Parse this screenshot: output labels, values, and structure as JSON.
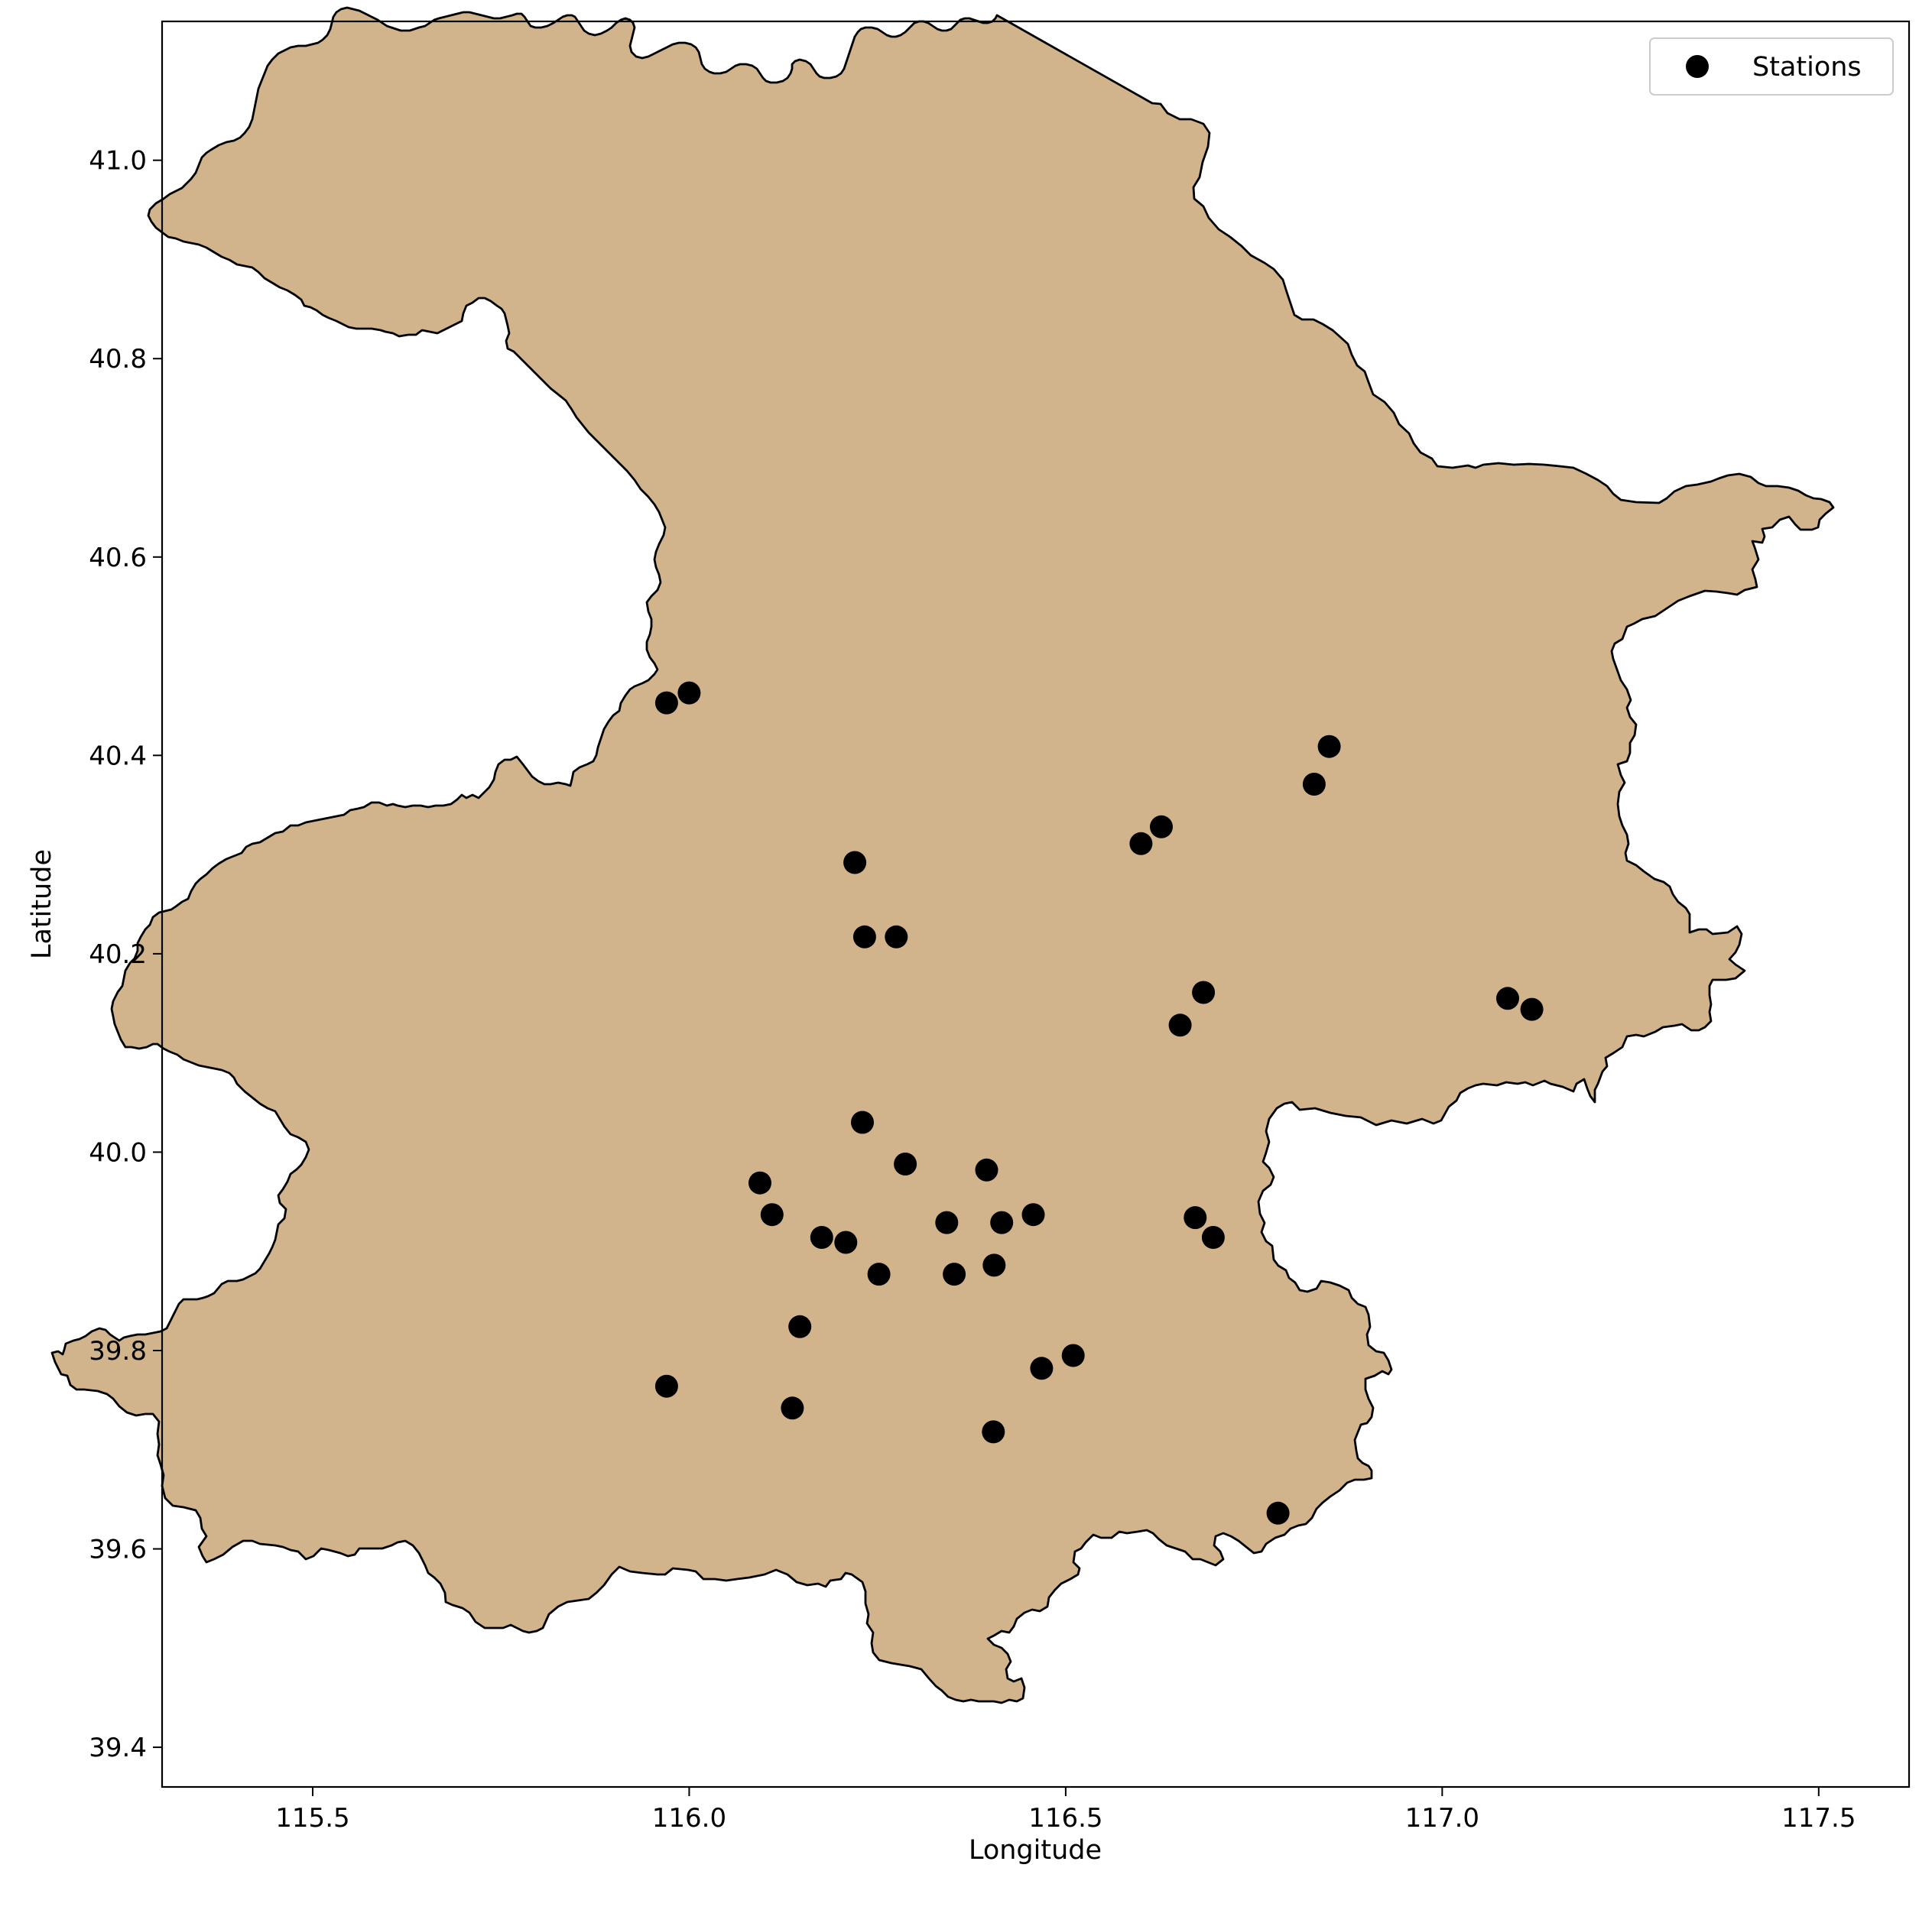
{
  "chart_data": {
    "type": "scatter",
    "title": "",
    "xlabel": "Longitude",
    "ylabel": "Latitude",
    "xlim": [
      115.3,
      117.62
    ],
    "ylim": [
      39.36,
      41.14
    ],
    "x_ticks": [
      115.5,
      116.0,
      116.5,
      117.0,
      117.5
    ],
    "x_tick_labels": [
      "115.5",
      "116.0",
      "116.5",
      "117.0",
      "117.5"
    ],
    "y_ticks": [
      39.4,
      39.6,
      39.8,
      40.0,
      40.2,
      40.4,
      40.6,
      40.8,
      41.0
    ],
    "y_tick_labels": [
      "39.4",
      "39.6",
      "39.8",
      "40.0",
      "40.2",
      "40.4",
      "40.6",
      "40.8",
      "41.0"
    ],
    "grid": false,
    "legend": {
      "position": "top-right",
      "entries": [
        "Stations"
      ]
    },
    "region": {
      "fill_color": "#d2b48c",
      "edge_color": "#000000"
    },
    "marker_color": "#000000",
    "series": [
      {
        "name": "Stations",
        "points": [
          [
            115.97,
            40.453
          ],
          [
            116.0,
            40.463
          ],
          [
            116.85,
            40.409
          ],
          [
            116.83,
            40.371
          ],
          [
            116.627,
            40.328
          ],
          [
            116.6,
            40.311
          ],
          [
            116.22,
            40.292
          ],
          [
            116.233,
            40.217
          ],
          [
            116.275,
            40.217
          ],
          [
            116.683,
            40.161
          ],
          [
            116.652,
            40.128
          ],
          [
            117.087,
            40.155
          ],
          [
            117.119,
            40.144
          ],
          [
            116.23,
            40.03
          ],
          [
            116.287,
            39.988
          ],
          [
            116.395,
            39.982
          ],
          [
            116.094,
            39.969
          ],
          [
            116.11,
            39.937
          ],
          [
            116.457,
            39.937
          ],
          [
            116.672,
            39.934
          ],
          [
            116.696,
            39.914
          ],
          [
            116.342,
            39.929
          ],
          [
            116.415,
            39.929
          ],
          [
            116.176,
            39.914
          ],
          [
            116.208,
            39.909
          ],
          [
            116.405,
            39.886
          ],
          [
            116.252,
            39.877
          ],
          [
            116.352,
            39.877
          ],
          [
            116.147,
            39.824
          ],
          [
            115.97,
            39.764
          ],
          [
            116.51,
            39.795
          ],
          [
            116.468,
            39.782
          ],
          [
            116.137,
            39.742
          ],
          [
            116.404,
            39.718
          ],
          [
            116.782,
            39.636
          ]
        ]
      }
    ]
  },
  "legend_label": "Stations"
}
